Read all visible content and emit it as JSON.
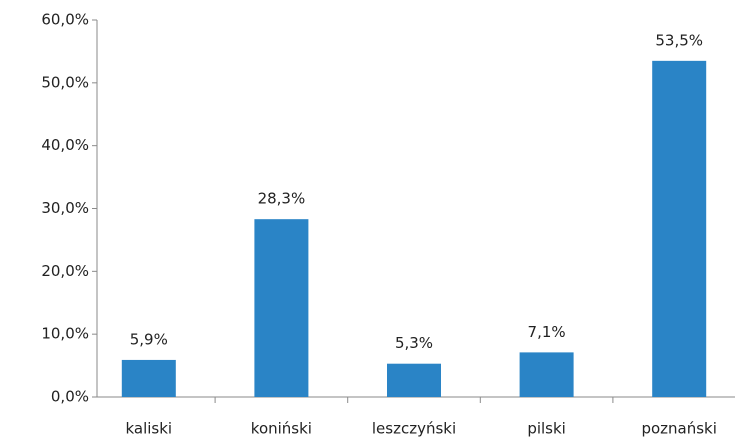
{
  "chart_data": {
    "type": "bar",
    "categories": [
      "kaliski",
      "koniński",
      "leszczyński",
      "pilski",
      "poznański"
    ],
    "values": [
      5.9,
      28.3,
      5.3,
      7.1,
      53.5
    ],
    "value_labels": [
      "5,9%",
      "28,3%",
      "5,3%",
      "7,1%",
      "53,5%"
    ],
    "color": "#2a84c6",
    "ylim": [
      0,
      60
    ],
    "yticks": [
      {
        "value": 0,
        "label": "0,0%"
      },
      {
        "value": 10,
        "label": "10,0%"
      },
      {
        "value": 20,
        "label": "20,0%"
      },
      {
        "value": 30,
        "label": "30,0%"
      },
      {
        "value": 40,
        "label": "40,0%"
      },
      {
        "value": 50,
        "label": "50,0%"
      },
      {
        "value": 60,
        "label": "60,0%"
      }
    ],
    "grid": false
  }
}
